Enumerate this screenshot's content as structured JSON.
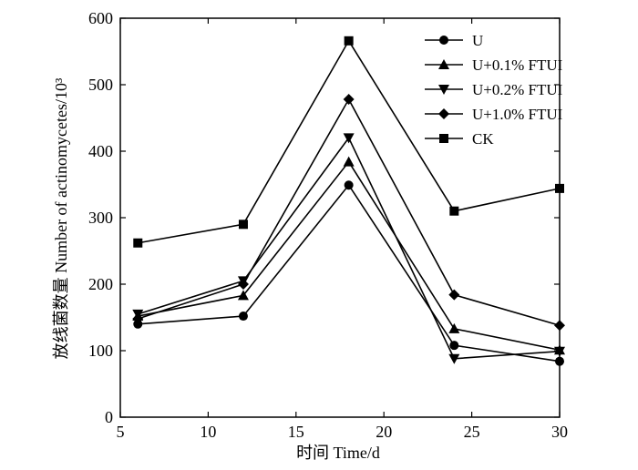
{
  "chart_data": {
    "type": "line",
    "title": "",
    "xlabel": "时间 Time/d",
    "ylabel": "放线菌数量 Number of actinomycetes/10³",
    "xlim": [
      5,
      30
    ],
    "ylim": [
      0,
      600
    ],
    "xticks": [
      5,
      10,
      15,
      20,
      25,
      30
    ],
    "yticks": [
      0,
      100,
      200,
      300,
      400,
      500,
      600
    ],
    "grid": false,
    "legend_position": "top-right",
    "x": [
      6,
      12,
      18,
      24,
      30
    ],
    "series": [
      {
        "name": "U",
        "marker": "circle",
        "values": [
          140,
          152,
          349,
          108,
          84
        ]
      },
      {
        "name": "U+0.1% FTUI",
        "marker": "triangle-up",
        "values": [
          152,
          183,
          384,
          133,
          101
        ]
      },
      {
        "name": "U+0.2% FTUI",
        "marker": "triangle-down",
        "values": [
          155,
          205,
          420,
          88,
          99
        ]
      },
      {
        "name": "U+1.0% FTUI",
        "marker": "diamond",
        "values": [
          148,
          200,
          478,
          184,
          138
        ]
      },
      {
        "name": "CK",
        "marker": "square",
        "values": [
          262,
          290,
          566,
          310,
          344
        ]
      }
    ]
  }
}
